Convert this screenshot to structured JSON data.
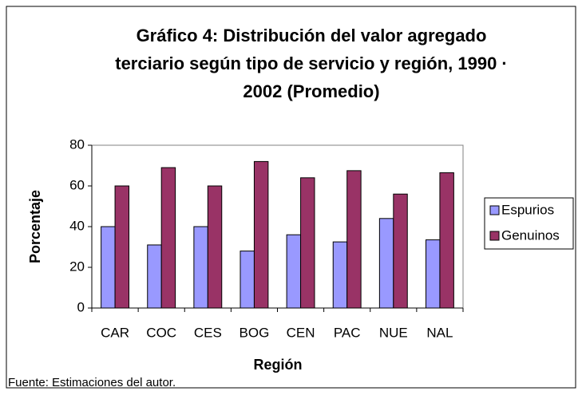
{
  "chart_data": {
    "type": "bar",
    "title": [
      "Gráfico 4: Distribución del valor agregado",
      "terciario según tipo de servicio y región, 1990 ·",
      "2002 (Promedio)"
    ],
    "x_label": "Región",
    "y_label": "Porcentaje",
    "categories": [
      "CAR",
      "COC",
      "CES",
      "BOG",
      "CEN",
      "PAC",
      "NUE",
      "NAL"
    ],
    "series": [
      {
        "name": "Espurios",
        "color": "#9999ff",
        "values": [
          40,
          31,
          40,
          28,
          36,
          32.5,
          44,
          33.5
        ]
      },
      {
        "name": "Genuinos",
        "color": "#993366",
        "values": [
          60,
          69,
          60,
          72,
          64,
          67.5,
          56,
          66.5
        ]
      }
    ],
    "ylim": [
      0,
      80
    ],
    "yticks": [
      0,
      20,
      40,
      60,
      80
    ],
    "legend": "right",
    "note": "Fuente: Estimaciones del autor."
  }
}
